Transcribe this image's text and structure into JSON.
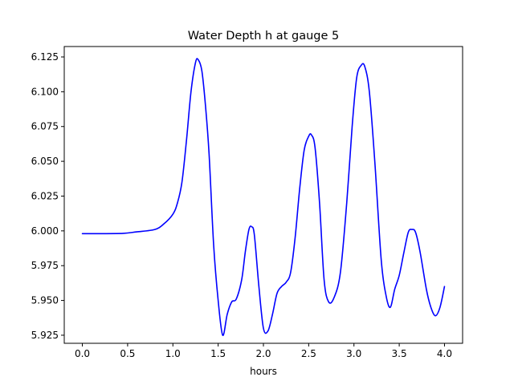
{
  "chart_data": {
    "type": "line",
    "title": "Water Depth h at gauge 5",
    "xlabel": "hours",
    "ylabel": "",
    "xlim": [
      -0.2,
      4.2
    ],
    "ylim": [
      5.9192,
      6.1325
    ],
    "xticks": [
      0.0,
      0.5,
      1.0,
      1.5,
      2.0,
      2.5,
      3.0,
      3.5,
      4.0
    ],
    "xtick_labels": [
      "0.0",
      "0.5",
      "1.0",
      "1.5",
      "2.0",
      "2.5",
      "3.0",
      "3.5",
      "4.0"
    ],
    "yticks": [
      5.925,
      5.95,
      5.975,
      6.0,
      6.025,
      6.05,
      6.075,
      6.1,
      6.125
    ],
    "ytick_labels": [
      "5.925",
      "5.950",
      "5.975",
      "6.000",
      "6.025",
      "6.050",
      "6.075",
      "6.100",
      "6.125"
    ],
    "grid": false,
    "legend": "none",
    "series": [
      {
        "color": "#0000ff",
        "x": [
          0.0,
          0.2,
          0.45,
          0.6,
          0.8,
          0.9,
          1.0,
          1.05,
          1.1,
          1.15,
          1.2,
          1.25,
          1.28,
          1.32,
          1.36,
          1.4,
          1.45,
          1.5,
          1.55,
          1.6,
          1.65,
          1.7,
          1.76,
          1.8,
          1.84,
          1.87,
          1.9,
          1.95,
          2.0,
          2.05,
          2.1,
          2.15,
          2.2,
          2.25,
          2.3,
          2.35,
          2.4,
          2.45,
          2.5,
          2.53,
          2.57,
          2.62,
          2.67,
          2.72,
          2.78,
          2.85,
          2.92,
          2.98,
          3.03,
          3.08,
          3.12,
          3.17,
          3.23,
          3.3,
          3.35,
          3.4,
          3.45,
          3.5,
          3.55,
          3.6,
          3.64,
          3.68,
          3.73,
          3.8,
          3.85,
          3.9,
          3.95,
          4.0
        ],
        "y": [
          5.998,
          5.998,
          5.9982,
          5.9993,
          6.001,
          6.005,
          6.012,
          6.02,
          6.035,
          6.065,
          6.1,
          6.121,
          6.123,
          6.115,
          6.09,
          6.055,
          5.99,
          5.95,
          5.925,
          5.94,
          5.949,
          5.951,
          5.965,
          5.985,
          6.001,
          6.003,
          5.997,
          5.96,
          5.93,
          5.928,
          5.94,
          5.955,
          5.96,
          5.963,
          5.97,
          5.995,
          6.03,
          6.058,
          6.068,
          6.069,
          6.06,
          6.02,
          5.965,
          5.949,
          5.952,
          5.97,
          6.02,
          6.075,
          6.11,
          6.119,
          6.118,
          6.1,
          6.05,
          5.98,
          5.955,
          5.945,
          5.958,
          5.968,
          5.984,
          5.999,
          6.001,
          5.999,
          5.985,
          5.958,
          5.945,
          5.939,
          5.945,
          5.96
        ]
      }
    ]
  }
}
